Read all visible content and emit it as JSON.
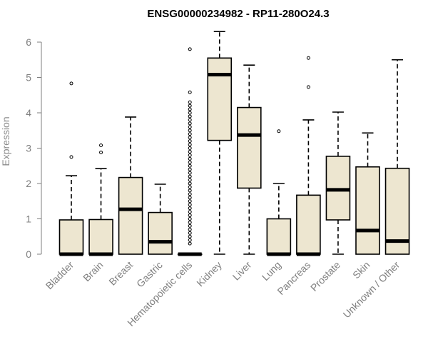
{
  "chart_data": {
    "type": "boxplot",
    "title": "ENSG00000234982 - RP11-280O24.3",
    "xlabel": "",
    "ylabel": "Expression",
    "ylim": [
      0,
      6.3
    ],
    "yticks": [
      0,
      1,
      2,
      3,
      4,
      5,
      6
    ],
    "categories": [
      "Bladder",
      "Brain",
      "Breast",
      "Gastric",
      "Hematopoietic cells",
      "Kidney",
      "Liver",
      "Lung",
      "Pancreas",
      "Prostate",
      "Skin",
      "Unknown / Other"
    ],
    "boxes": [
      {
        "name": "Bladder",
        "min": 0,
        "q1": 0,
        "median": 0,
        "q3": 0.97,
        "max": 2.22,
        "outliers": [
          2.75,
          4.83
        ]
      },
      {
        "name": "Brain",
        "min": 0,
        "q1": 0,
        "median": 0,
        "q3": 0.98,
        "max": 2.42,
        "outliers": [
          2.88,
          3.08
        ]
      },
      {
        "name": "Breast",
        "min": 0,
        "q1": 0,
        "median": 1.27,
        "q3": 2.17,
        "max": 3.88,
        "outliers": []
      },
      {
        "name": "Gastric",
        "min": 0,
        "q1": 0,
        "median": 0.35,
        "q3": 1.18,
        "max": 1.98,
        "outliers": []
      },
      {
        "name": "Hematopoietic cells",
        "min": 0,
        "q1": 0,
        "median": 0,
        "q3": 0,
        "max": 0,
        "outliers": [
          0.3,
          0.4,
          0.5,
          0.6,
          0.7,
          0.8,
          0.9,
          1.0,
          1.1,
          1.2,
          1.3,
          1.4,
          1.5,
          1.6,
          1.7,
          1.8,
          1.9,
          2.0,
          2.1,
          2.2,
          2.3,
          2.4,
          2.5,
          2.6,
          2.7,
          2.8,
          2.9,
          3.0,
          3.1,
          3.2,
          3.3,
          3.4,
          3.5,
          3.6,
          3.7,
          3.8,
          3.9,
          4.0,
          4.1,
          4.2,
          4.3,
          4.58,
          5.8
        ]
      },
      {
        "name": "Kidney",
        "min": 0,
        "q1": 3.22,
        "median": 5.08,
        "q3": 5.55,
        "max": 6.3,
        "outliers": []
      },
      {
        "name": "Liver",
        "min": 0,
        "q1": 1.87,
        "median": 3.37,
        "q3": 4.15,
        "max": 5.35,
        "outliers": []
      },
      {
        "name": "Lung",
        "min": 0,
        "q1": 0,
        "median": 0,
        "q3": 1.0,
        "max": 2.0,
        "outliers": [
          3.48
        ]
      },
      {
        "name": "Pancreas",
        "min": 0,
        "q1": 0,
        "median": 0,
        "q3": 1.67,
        "max": 3.8,
        "outliers": [
          4.73,
          5.55
        ]
      },
      {
        "name": "Prostate",
        "min": 0,
        "q1": 0.97,
        "median": 1.82,
        "q3": 2.77,
        "max": 4.02,
        "outliers": []
      },
      {
        "name": "Skin",
        "min": 0,
        "q1": 0,
        "median": 0.67,
        "q3": 2.47,
        "max": 3.43,
        "outliers": []
      },
      {
        "name": "Unknown / Other",
        "min": 0,
        "q1": 0,
        "median": 0.37,
        "q3": 2.43,
        "max": 5.5,
        "outliers": []
      }
    ]
  }
}
